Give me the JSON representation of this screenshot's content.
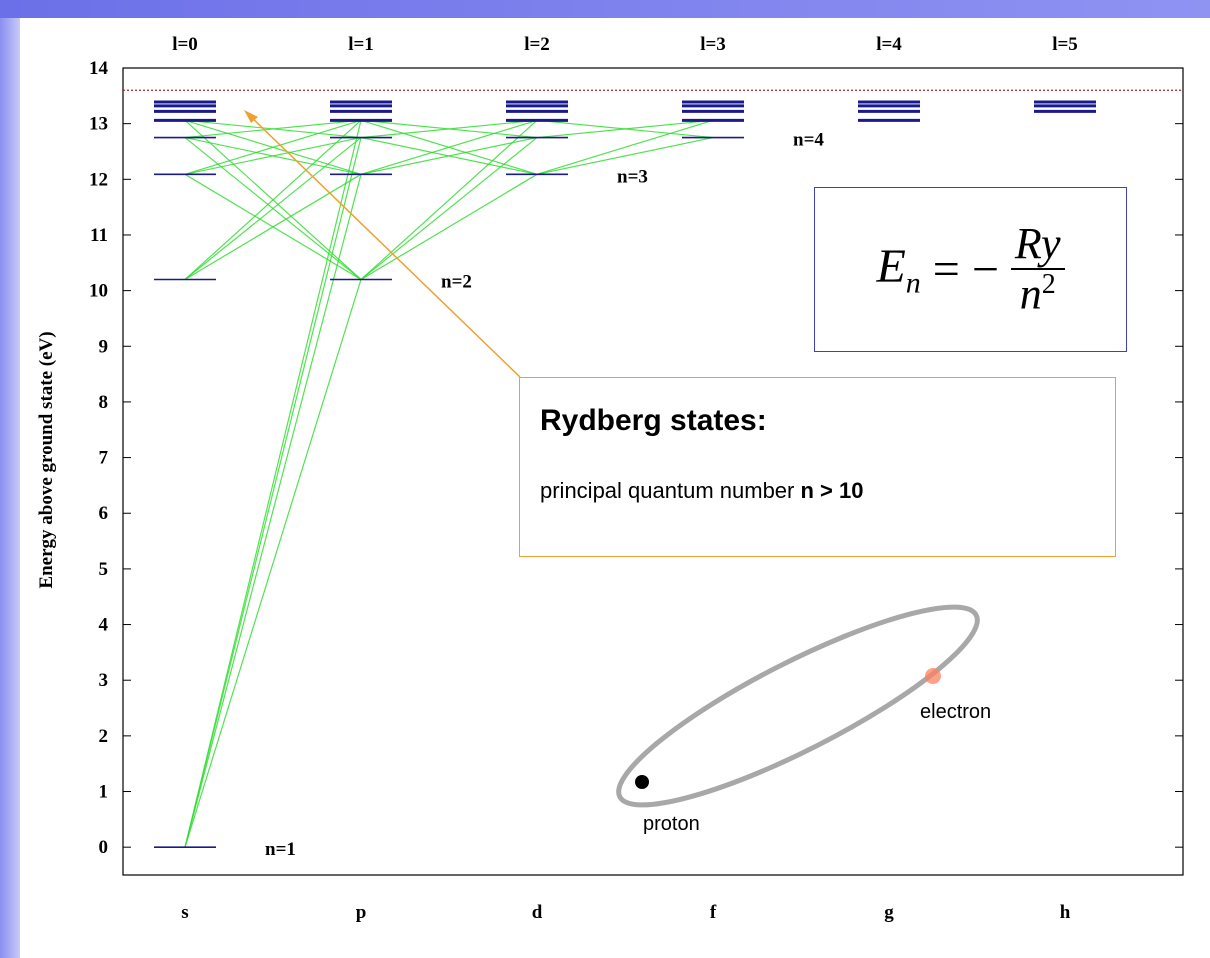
{
  "chart_data": {
    "type": "levels",
    "y_label": "Energy above ground state (eV)",
    "categories": [
      "s",
      "p",
      "d",
      "f",
      "g",
      "h"
    ],
    "top_labels": [
      "l=0",
      "l=1",
      "l=2",
      "l=3",
      "l=4",
      "l=5"
    ],
    "ylim": [
      -0.5,
      14
    ],
    "yticks": [
      0,
      1,
      2,
      3,
      4,
      5,
      6,
      7,
      8,
      9,
      10,
      11,
      12,
      13,
      14
    ],
    "ionization": 13.6,
    "level_color": "#1a1a8c",
    "transition_color": "#33dd33",
    "ionization_color": "#b22222",
    "columns": [
      {
        "l": 0,
        "levels": [
          {
            "n": 1,
            "energy": 0
          },
          {
            "n": 2,
            "energy": 10.2
          },
          {
            "n": 3,
            "energy": 12.09
          },
          {
            "n": 4,
            "energy": 12.75
          },
          {
            "n": 5,
            "energy": 13.06
          },
          {
            "n": 6,
            "energy": 13.22
          },
          {
            "n": 7,
            "energy": 13.32
          },
          {
            "n": 8,
            "energy": 13.39
          }
        ]
      },
      {
        "l": 1,
        "levels": [
          {
            "n": 2,
            "energy": 10.2
          },
          {
            "n": 3,
            "energy": 12.09
          },
          {
            "n": 4,
            "energy": 12.75
          },
          {
            "n": 5,
            "energy": 13.06
          },
          {
            "n": 6,
            "energy": 13.22
          },
          {
            "n": 7,
            "energy": 13.32
          },
          {
            "n": 8,
            "energy": 13.39
          }
        ]
      },
      {
        "l": 2,
        "levels": [
          {
            "n": 3,
            "energy": 12.09
          },
          {
            "n": 4,
            "energy": 12.75
          },
          {
            "n": 5,
            "energy": 13.06
          },
          {
            "n": 6,
            "energy": 13.22
          },
          {
            "n": 7,
            "energy": 13.32
          },
          {
            "n": 8,
            "energy": 13.39
          }
        ]
      },
      {
        "l": 3,
        "levels": [
          {
            "n": 4,
            "energy": 12.75
          },
          {
            "n": 5,
            "energy": 13.06
          },
          {
            "n": 6,
            "energy": 13.22
          },
          {
            "n": 7,
            "energy": 13.32
          },
          {
            "n": 8,
            "energy": 13.39
          }
        ]
      },
      {
        "l": 4,
        "levels": [
          {
            "n": 5,
            "energy": 13.06
          },
          {
            "n": 6,
            "energy": 13.22
          },
          {
            "n": 7,
            "energy": 13.32
          },
          {
            "n": 8,
            "energy": 13.39
          }
        ]
      },
      {
        "l": 5,
        "levels": [
          {
            "n": 6,
            "energy": 13.22
          },
          {
            "n": 7,
            "energy": 13.32
          },
          {
            "n": 8,
            "energy": 13.39
          }
        ]
      }
    ],
    "level_labels": [
      {
        "label": "n=1",
        "n": 1,
        "l": 0
      },
      {
        "label": "n=2",
        "n": 2,
        "l": 1
      },
      {
        "label": "n=3",
        "n": 3,
        "l": 2
      },
      {
        "label": "n=4",
        "n": 4,
        "l": 3
      }
    ],
    "transitions": [
      [
        1,
        0,
        2,
        1
      ],
      [
        1,
        0,
        3,
        1
      ],
      [
        1,
        0,
        4,
        1
      ],
      [
        1,
        0,
        5,
        1
      ],
      [
        2,
        0,
        3,
        1
      ],
      [
        2,
        0,
        4,
        1
      ],
      [
        2,
        0,
        5,
        1
      ],
      [
        3,
        0,
        2,
        1
      ],
      [
        3,
        0,
        4,
        1
      ],
      [
        3,
        0,
        5,
        1
      ],
      [
        4,
        0,
        2,
        1
      ],
      [
        4,
        0,
        3,
        1
      ],
      [
        4,
        0,
        5,
        1
      ],
      [
        5,
        0,
        2,
        1
      ],
      [
        5,
        0,
        3,
        1
      ],
      [
        5,
        0,
        4,
        1
      ],
      [
        2,
        1,
        4,
        2
      ],
      [
        2,
        1,
        5,
        2
      ],
      [
        2,
        1,
        3,
        2
      ],
      [
        3,
        1,
        4,
        2
      ],
      [
        3,
        1,
        5,
        2
      ],
      [
        4,
        1,
        3,
        2
      ],
      [
        4,
        1,
        5,
        2
      ],
      [
        5,
        1,
        3,
        2
      ],
      [
        5,
        1,
        4,
        2
      ],
      [
        3,
        2,
        4,
        3
      ],
      [
        3,
        2,
        5,
        3
      ],
      [
        4,
        2,
        5,
        3
      ],
      [
        5,
        2,
        4,
        3
      ]
    ]
  },
  "annotation": {
    "title": "Rydberg states:",
    "text": "principal quantum number ",
    "bold": "n > 10"
  },
  "formula": {
    "lhs": "E",
    "sub": "n",
    "eq": "= −",
    "num": "Ry",
    "den": "n",
    "sup": "2"
  },
  "orbit": {
    "proton": "proton",
    "electron": "electron"
  }
}
